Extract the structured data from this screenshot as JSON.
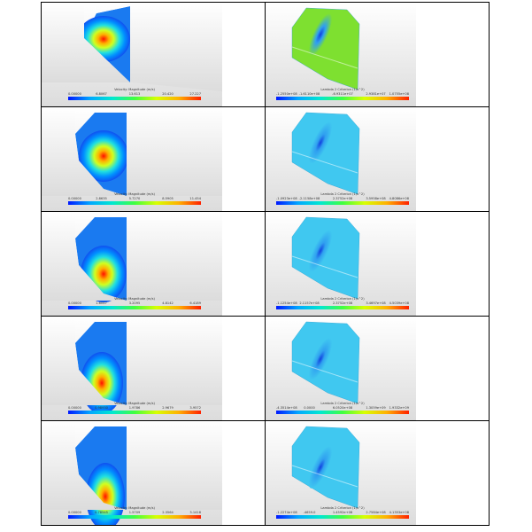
{
  "table": {
    "rows": [
      [
        {
          "title": "Velocity: Magnitude (m/s)",
          "ticks": [
            "0.00000",
            "6.8067",
            "13.613",
            "20.420",
            "27.227"
          ]
        },
        {
          "title": "Lambda 2 Criterion (1/s^2)",
          "ticks": [
            "-1.2550e+08",
            "-1.6110e+08",
            "-6.9311e+07",
            "2.9381e+07",
            "1.0755e+08"
          ]
        }
      ],
      [
        {
          "title": "Velocity: Magnitude (m/s)",
          "ticks": [
            "0.00000",
            "2.8635",
            "5.7270",
            "8.5905",
            "11.454"
          ]
        },
        {
          "title": "Lambda 2 Criterion (1/s^2)",
          "ticks": [
            "-1.0923e+08",
            "-2.1158e+08",
            "2.3752e+08",
            "3.5958e+08",
            "4.8086e+08"
          ]
        }
      ],
      [
        {
          "title": "Velocity: Magnitude (m/s)",
          "ticks": [
            "0.00000",
            "1.6047",
            "3.2095",
            "4.8142",
            "6.4189"
          ]
        },
        {
          "title": "Lambda 2 Criterion (1/s^2)",
          "ticks": [
            "-1.1254e+08",
            "2.1157e+08",
            "2.3752e+08",
            "3.4697e+08",
            "4.5039e+08"
          ]
        }
      ],
      [
        {
          "title": "Velocity: Magnitude (m/s)",
          "ticks": [
            "0.00000",
            "0.98930",
            "1.9786",
            "2.9679",
            "3.9572"
          ]
        },
        {
          "title": "Lambda 2 Criterion (1/s^2)",
          "ticks": [
            "-4.3514e+08",
            "0.0000",
            "6.0520e+08",
            "1.3059e+09",
            "1.9332e+09"
          ]
        }
      ],
      [
        {
          "title": "Velocity: Magnitude (m/s)",
          "ticks": [
            "0.00000",
            "0.78545",
            "1.5709",
            "2.3564",
            "3.1418"
          ]
        },
        {
          "title": "Lambda 2 Criterion (1/s^2)",
          "ticks": [
            "-1.2274e+08",
            "-4659.0",
            "1.4592e+08",
            "2.7584e+08",
            "4.1353e+08"
          ]
        }
      ]
    ]
  }
}
